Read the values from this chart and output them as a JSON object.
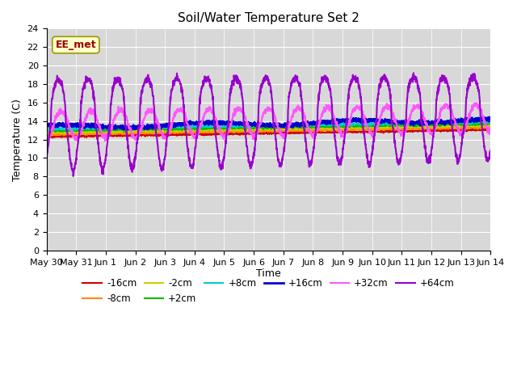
{
  "title": "Soil/Water Temperature Set 2",
  "xlabel": "Time",
  "ylabel": "Temperature (C)",
  "ylim": [
    0,
    24
  ],
  "yticks": [
    0,
    2,
    4,
    6,
    8,
    10,
    12,
    14,
    16,
    18,
    20,
    22,
    24
  ],
  "watermark": "EE_met",
  "background_color": "#d8d8d8",
  "series": {
    "-16cm": {
      "color": "#cc0000",
      "linewidth": 1.2
    },
    "-8cm": {
      "color": "#ff8800",
      "linewidth": 1.2
    },
    "-2cm": {
      "color": "#cccc00",
      "linewidth": 1.2
    },
    "+2cm": {
      "color": "#00bb00",
      "linewidth": 1.2
    },
    "+8cm": {
      "color": "#00cccc",
      "linewidth": 1.2
    },
    "+16cm": {
      "color": "#0000cc",
      "linewidth": 2.0
    },
    "+32cm": {
      "color": "#ff55ff",
      "linewidth": 1.5
    },
    "+64cm": {
      "color": "#9900cc",
      "linewidth": 1.5
    }
  },
  "num_days": 15,
  "points_per_day": 144,
  "day_labels": [
    "May 30",
    "May 31",
    "Jun 1",
    "Jun 2",
    "Jun 3",
    "Jun 4",
    "Jun 5",
    "Jun 6",
    "Jun 7",
    "Jun 8",
    "Jun 9",
    "Jun 10",
    "Jun 11",
    "Jun 12",
    "Jun 13",
    "Jun 14"
  ]
}
